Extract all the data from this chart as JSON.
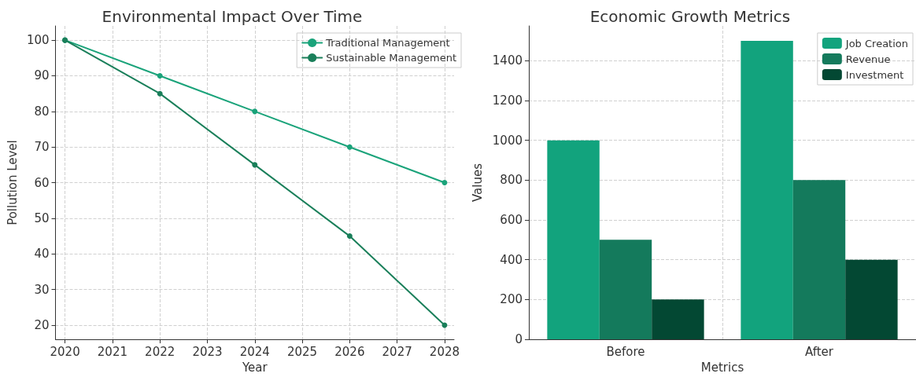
{
  "chart_data": [
    {
      "type": "line",
      "title": "Environmental Impact Over Time",
      "xlabel": "Year",
      "ylabel": "Pollution Level",
      "x": [
        2020,
        2022,
        2024,
        2026,
        2028
      ],
      "series": [
        {
          "name": "Traditional Management",
          "color": "#1aa37a",
          "values": [
            100,
            90,
            80,
            70,
            60
          ]
        },
        {
          "name": "Sustainable Management",
          "color": "#1a7f5a",
          "values": [
            100,
            85,
            65,
            45,
            20
          ]
        }
      ],
      "xlim": [
        2019.8,
        2028.2
      ],
      "xticks": [
        2020,
        2021,
        2022,
        2023,
        2024,
        2025,
        2026,
        2027,
        2028
      ],
      "ylim": [
        16,
        104
      ],
      "yticks": [
        20,
        30,
        40,
        50,
        60,
        70,
        80,
        90,
        100
      ],
      "grid": true,
      "legend": "top right",
      "marker": "circle",
      "line_style": "solid"
    },
    {
      "type": "bar",
      "title": "Economic Growth Metrics",
      "xlabel": "Metrics",
      "ylabel": "Values",
      "categories": [
        "Before",
        "After"
      ],
      "series": [
        {
          "name": "Job Creation",
          "color": "#12a37d",
          "values": [
            1000,
            1500
          ]
        },
        {
          "name": "Revenue",
          "color": "#147a5c",
          "values": [
            500,
            800
          ]
        },
        {
          "name": "Investment",
          "color": "#034833",
          "values": [
            200,
            400
          ]
        }
      ],
      "ylim": [
        0,
        1575
      ],
      "yticks": [
        0,
        200,
        400,
        600,
        800,
        1000,
        1200,
        1400
      ],
      "grid": true,
      "legend": "top right"
    }
  ]
}
